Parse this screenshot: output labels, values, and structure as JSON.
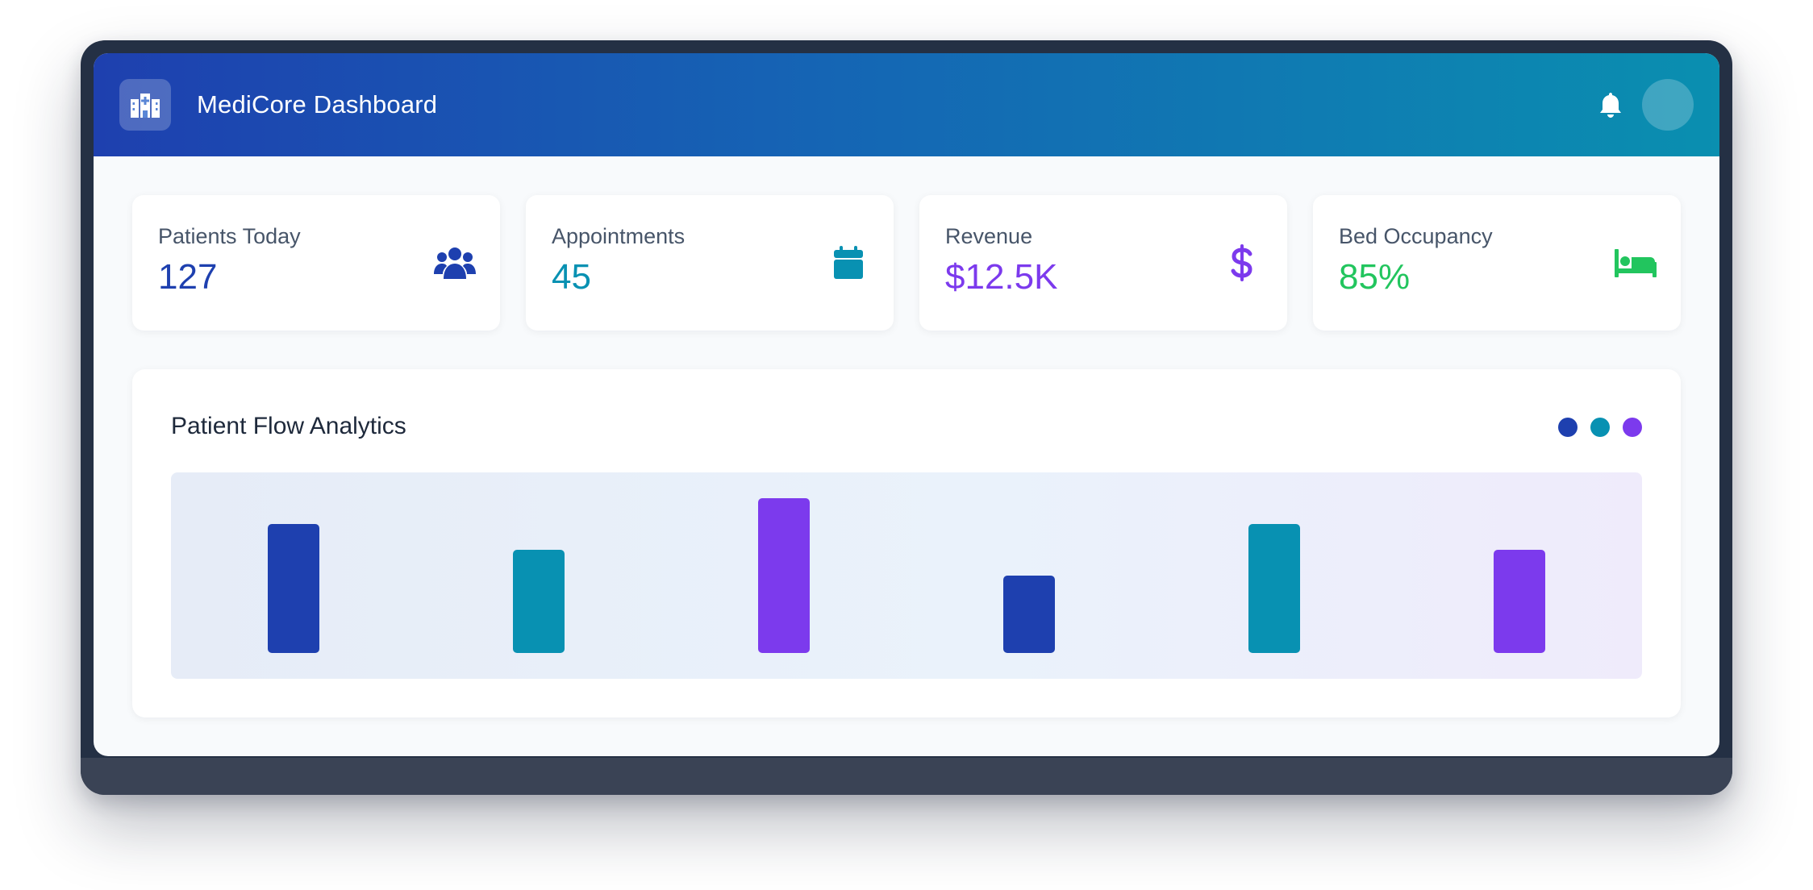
{
  "header": {
    "title": "MediCore Dashboard",
    "logo_icon": "hospital-icon",
    "notification_icon": "bell-icon"
  },
  "stats": [
    {
      "label": "Patients Today",
      "value": "127",
      "icon": "users-icon",
      "color": "#1e40af"
    },
    {
      "label": "Appointments",
      "value": "45",
      "icon": "calendar-icon",
      "color": "#0891b2"
    },
    {
      "label": "Revenue",
      "value": "$12.5K",
      "icon": "dollar-icon",
      "color": "#7c3aed"
    },
    {
      "label": "Bed Occupancy",
      "value": "85%",
      "icon": "bed-icon",
      "color": "#22c55e"
    }
  ],
  "analytics": {
    "title": "Patient Flow Analytics",
    "legend_colors": [
      "#1e40af",
      "#0891b2",
      "#7c3aed"
    ]
  },
  "chart_data": {
    "type": "bar",
    "values": [
      5,
      4,
      6,
      3,
      5,
      4
    ],
    "colors": [
      "#1e40af",
      "#0891b2",
      "#7c3aed",
      "#1e40af",
      "#0891b2",
      "#7c3aed"
    ],
    "ylim": [
      0,
      7
    ],
    "grid": false
  }
}
